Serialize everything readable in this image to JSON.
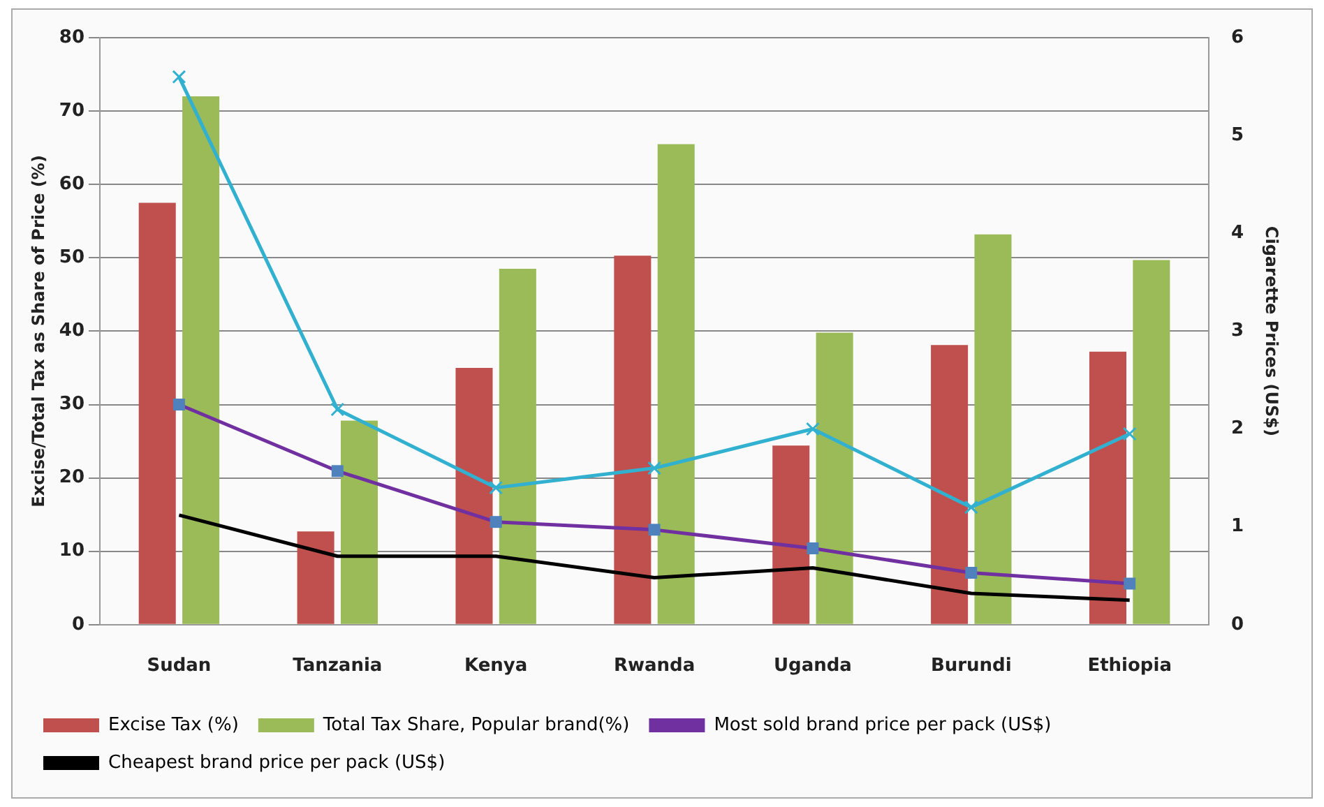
{
  "chart_data": {
    "type": "bar",
    "categories": [
      "Sudan",
      "Tanzania",
      "Kenya",
      "Rwanda",
      "Uganda",
      "Burundi",
      "Ethiopia"
    ],
    "ylabel": "Excise/Total Tax as Share of Price (%)",
    "y2label": "Cigarette Prices (US$)",
    "ylim": [
      0,
      80
    ],
    "yticks": [
      0,
      10,
      20,
      30,
      40,
      50,
      60,
      70,
      80
    ],
    "y2lim": [
      0,
      6
    ],
    "y2ticks": [
      0,
      1,
      2,
      3,
      4,
      5,
      6
    ],
    "grid": "y",
    "legend": "bottom",
    "series": [
      {
        "name": "Excise Tax (%)",
        "color": "#c0504d",
        "values": [
          57.5,
          12.7,
          35,
          50.3,
          24.4,
          38.1,
          37.2
        ]
      },
      {
        "name": "Total Tax Share, Popular brand(%)",
        "color": "#9bbb59",
        "values": [
          72,
          27.8,
          48.5,
          65.5,
          39.8,
          53.2,
          49.7
        ]
      },
      {
        "name": "Most sold brand price per pack (US$)",
        "type": "line",
        "axis": "y2",
        "marker": "square",
        "color": "#7030a0",
        "values": [
          2.25,
          1.57,
          1.05,
          0.97,
          0.78,
          0.53,
          0.42
        ]
      },
      {
        "name": "Cheapest brand price per pack (US$)",
        "type": "line",
        "axis": "y2",
        "marker": "none",
        "color": "#000000",
        "values": [
          1.12,
          0.7,
          0.7,
          0.48,
          0.58,
          0.32,
          0.25
        ]
      },
      {
        "type": "line",
        "axis": "y2",
        "marker": "cross",
        "color": "#31b0d0",
        "values": [
          5.6,
          2.2,
          1.4,
          1.6,
          2.0,
          1.2,
          1.95
        ]
      }
    ]
  }
}
